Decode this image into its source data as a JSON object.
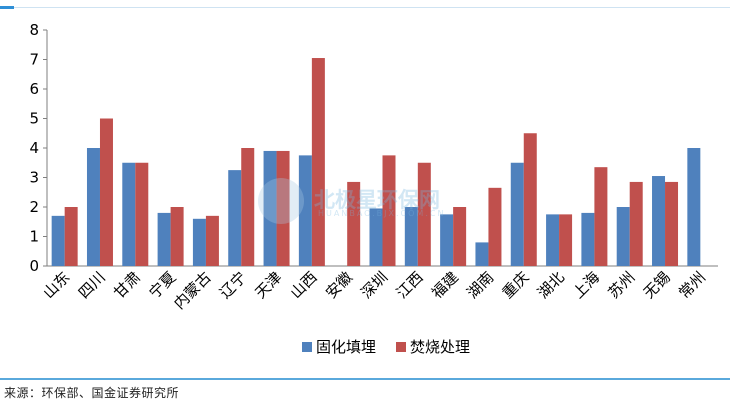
{
  "chart_data": {
    "type": "bar",
    "categories": [
      "山东",
      "四川",
      "甘肃",
      "宁夏",
      "内蒙古",
      "辽宁",
      "天津",
      "山西",
      "安徽",
      "深圳",
      "江西",
      "福建",
      "湖南",
      "重庆",
      "湖北",
      "上海",
      "苏州",
      "无锡",
      "常州"
    ],
    "series": [
      {
        "name": "固化填埋",
        "color": "#4f81bd",
        "values": [
          1.7,
          4.0,
          3.5,
          1.8,
          1.6,
          3.25,
          3.9,
          3.75,
          0,
          1.95,
          2.0,
          1.75,
          0.8,
          3.5,
          1.75,
          1.8,
          2.0,
          3.05,
          4.0
        ]
      },
      {
        "name": "焚烧处理",
        "color": "#c0504d",
        "values": [
          2.0,
          5.0,
          3.5,
          2.0,
          1.7,
          4.0,
          3.9,
          7.05,
          2.85,
          3.75,
          3.5,
          2.0,
          2.65,
          4.5,
          1.75,
          3.35,
          2.85,
          2.85,
          0
        ]
      }
    ],
    "yticks": [
      "0",
      "1",
      "2",
      "3",
      "4",
      "5",
      "6",
      "7",
      "8"
    ],
    "ylim": [
      0,
      8
    ],
    "legend_position": "bottom",
    "grid": false
  },
  "source_note": "来源：环保部、国金证券研究所",
  "watermark": {
    "text": "北极星环保网",
    "sub": "HUANBAO.BJX.COM.CN"
  }
}
